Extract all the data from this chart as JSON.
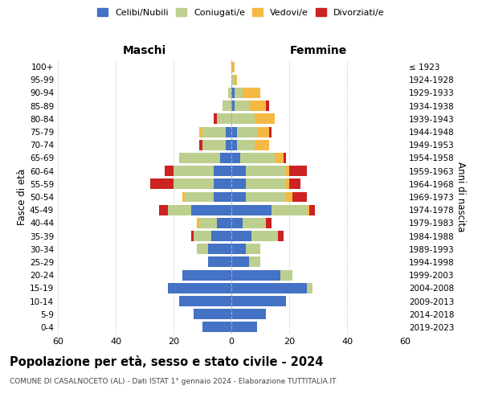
{
  "age_groups": [
    "0-4",
    "5-9",
    "10-14",
    "15-19",
    "20-24",
    "25-29",
    "30-34",
    "35-39",
    "40-44",
    "45-49",
    "50-54",
    "55-59",
    "60-64",
    "65-69",
    "70-74",
    "75-79",
    "80-84",
    "85-89",
    "90-94",
    "95-99",
    "100+"
  ],
  "birth_years": [
    "2019-2023",
    "2014-2018",
    "2009-2013",
    "2004-2008",
    "1999-2003",
    "1994-1998",
    "1989-1993",
    "1984-1988",
    "1979-1983",
    "1974-1978",
    "1969-1973",
    "1964-1968",
    "1959-1963",
    "1954-1958",
    "1949-1953",
    "1944-1948",
    "1939-1943",
    "1934-1938",
    "1929-1933",
    "1924-1928",
    "≤ 1923"
  ],
  "maschi": {
    "celibi": [
      10,
      13,
      18,
      22,
      17,
      8,
      8,
      7,
      5,
      14,
      6,
      6,
      6,
      4,
      2,
      2,
      0,
      0,
      0,
      0,
      0
    ],
    "coniugati": [
      0,
      0,
      0,
      0,
      0,
      0,
      4,
      6,
      6,
      8,
      10,
      14,
      14,
      14,
      8,
      8,
      5,
      3,
      1,
      0,
      0
    ],
    "vedovi": [
      0,
      0,
      0,
      0,
      0,
      0,
      0,
      0,
      1,
      0,
      1,
      0,
      0,
      0,
      0,
      1,
      0,
      0,
      0,
      0,
      0
    ],
    "divorziati": [
      0,
      0,
      0,
      0,
      0,
      0,
      0,
      1,
      0,
      3,
      0,
      8,
      3,
      0,
      1,
      0,
      1,
      0,
      0,
      0,
      0
    ]
  },
  "femmine": {
    "nubili": [
      9,
      12,
      19,
      26,
      17,
      6,
      5,
      7,
      4,
      14,
      5,
      5,
      5,
      3,
      2,
      2,
      0,
      1,
      1,
      0,
      0
    ],
    "coniugate": [
      0,
      0,
      0,
      2,
      4,
      4,
      5,
      9,
      8,
      12,
      14,
      14,
      14,
      12,
      6,
      7,
      8,
      5,
      3,
      1,
      0
    ],
    "vedove": [
      0,
      0,
      0,
      0,
      0,
      0,
      0,
      0,
      0,
      1,
      2,
      1,
      1,
      3,
      5,
      4,
      7,
      6,
      6,
      1,
      1
    ],
    "divorziate": [
      0,
      0,
      0,
      0,
      0,
      0,
      0,
      2,
      2,
      2,
      5,
      4,
      6,
      1,
      0,
      1,
      0,
      1,
      0,
      0,
      0
    ]
  },
  "colors": {
    "celibi_nubili": "#4472C4",
    "coniugati": "#BDCF8F",
    "vedovi": "#F4B942",
    "divorziati": "#CC2222"
  },
  "xlim": 60,
  "title": "Popolazione per età, sesso e stato civile - 2024",
  "subtitle": "COMUNE DI CASALNOCETO (AL) - Dati ISTAT 1° gennaio 2024 - Elaborazione TUTTITALIA.IT",
  "xlabel_left": "Maschi",
  "xlabel_right": "Femmine",
  "ylabel_left": "Fasce di età",
  "ylabel_right": "Anni di nascita",
  "legend_labels": [
    "Celibi/Nubili",
    "Coniugati/e",
    "Vedovi/e",
    "Divorziati/e"
  ],
  "background_color": "#ffffff",
  "grid_color": "#cccccc"
}
